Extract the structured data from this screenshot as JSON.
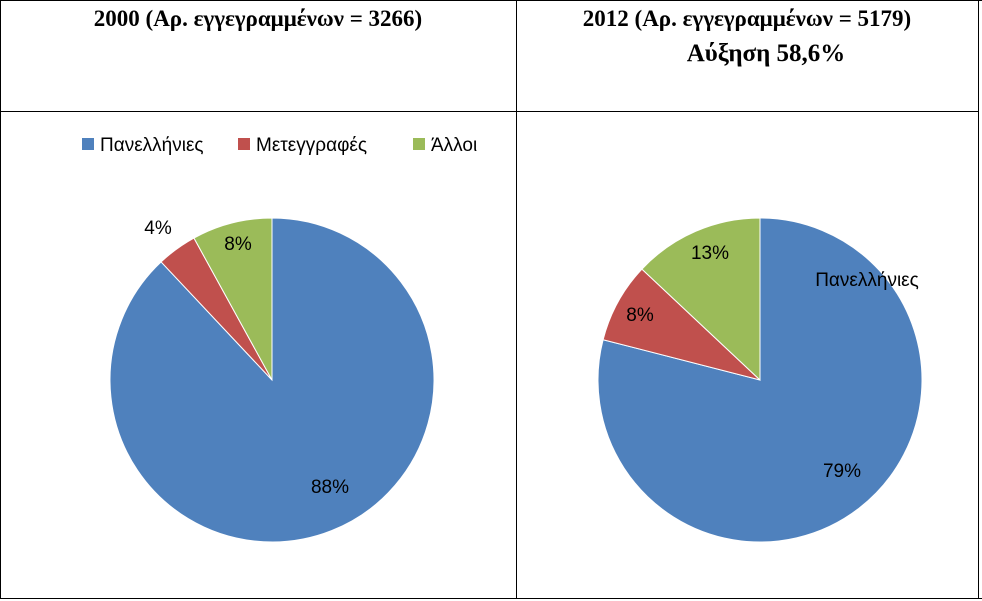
{
  "headers": {
    "left_title": "2000 (Αρ. εγγεγραμμένων = 3266)",
    "right_title": "2012 (Αρ. εγγεγραμμένων = 5179)",
    "right_subtitle": "Αύξηση 58,6%"
  },
  "chart_data": [
    {
      "type": "pie",
      "categories": [
        "Πανελλήνιες",
        "Μετεγγραφές",
        "Άλλοι"
      ],
      "values": [
        88,
        4,
        8
      ],
      "data_labels": [
        "88%",
        "4%",
        "8%"
      ],
      "colors": [
        "#4f81bd",
        "#c0504d",
        "#9bbb59"
      ],
      "legend": {
        "position": "top",
        "entries": [
          "Πανελλήνιες",
          "Μετεγγραφές",
          "Άλλοι"
        ]
      }
    },
    {
      "type": "pie",
      "categories": [
        "Πανελλήνιες",
        "Μετεγγραφές",
        "Άλλοι"
      ],
      "values": [
        79,
        8,
        13
      ],
      "data_labels": [
        "79%",
        "8%",
        "13%"
      ],
      "colors": [
        "#4f81bd",
        "#c0504d",
        "#9bbb59"
      ],
      "annotation": "Πανελλήνιες"
    }
  ]
}
